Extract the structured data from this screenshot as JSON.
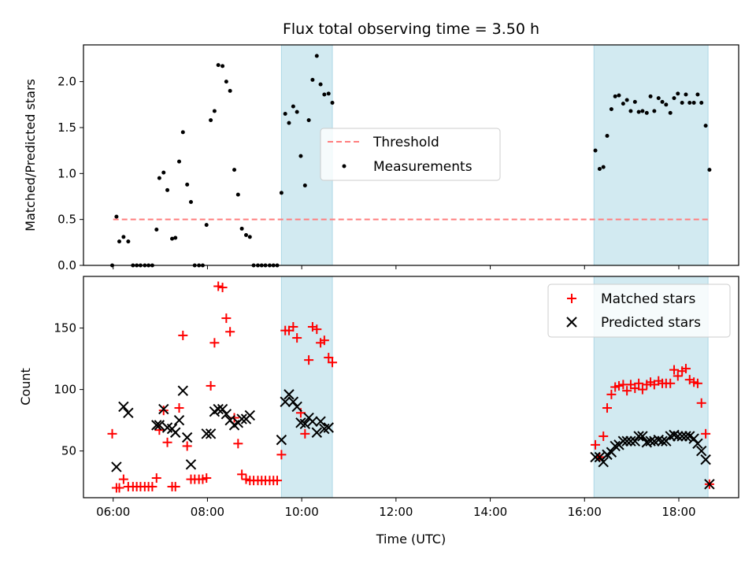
{
  "chart_data": {
    "title": "Flux total observing time = 3.50 h",
    "x_label": "Time (UTC)",
    "x_ticks": [
      "06:00",
      "08:00",
      "10:00",
      "12:00",
      "14:00",
      "16:00",
      "18:00"
    ],
    "x_range_hours": [
      5.37,
      19.27
    ],
    "shaded_intervals_hours": [
      [
        9.57,
        10.65
      ],
      [
        16.2,
        18.62
      ]
    ],
    "shade_color": "#add8e6",
    "panels": [
      {
        "type": "scatter",
        "y_label": "Matched/Predicted stars",
        "y_ticks": [
          0.0,
          0.5,
          1.0,
          1.5,
          2.0
        ],
        "y_tick_labels": [
          "0.0",
          "0.5",
          "1.0",
          "1.5",
          "2.0"
        ],
        "ylim": [
          0,
          2.4
        ],
        "legend_position": "center",
        "threshold": {
          "name": "Threshold",
          "value": 0.5,
          "x_range": [
            6.0,
            18.65
          ],
          "color": "#ff7f7f",
          "style": "dashed"
        },
        "series": [
          {
            "name": "Measurements",
            "color": "#000000",
            "marker": "dot",
            "x": [
              5.98,
              6.07,
              6.13,
              6.22,
              6.32,
              6.42,
              6.5,
              6.58,
              6.67,
              6.75,
              6.83,
              6.92,
              6.98,
              7.07,
              7.15,
              7.25,
              7.32,
              7.4,
              7.48,
              7.57,
              7.65,
              7.73,
              7.82,
              7.9,
              7.98,
              8.07,
              8.15,
              8.23,
              8.32,
              8.4,
              8.48,
              8.57,
              8.65,
              8.73,
              8.82,
              8.9,
              8.98,
              9.07,
              9.15,
              9.23,
              9.32,
              9.4,
              9.48,
              9.57,
              9.65,
              9.73,
              9.82,
              9.9,
              9.98,
              10.07,
              10.15,
              10.23,
              10.32,
              10.4,
              10.48,
              10.57,
              10.65,
              16.23,
              16.32,
              16.4,
              16.48,
              16.57,
              16.65,
              16.73,
              16.82,
              16.9,
              16.98,
              17.07,
              17.15,
              17.23,
              17.32,
              17.4,
              17.48,
              17.57,
              17.65,
              17.73,
              17.82,
              17.9,
              17.98,
              18.07,
              18.15,
              18.23,
              18.32,
              18.4,
              18.48,
              18.57,
              18.65
            ],
            "y": [
              0.0,
              0.53,
              0.26,
              0.31,
              0.26,
              0.0,
              0.0,
              0.0,
              0.0,
              0.0,
              0.0,
              0.39,
              0.95,
              1.01,
              0.82,
              0.29,
              0.3,
              1.13,
              1.45,
              0.88,
              0.69,
              0.0,
              0.0,
              0.0,
              0.44,
              1.58,
              1.68,
              2.18,
              2.17,
              2.0,
              1.9,
              1.04,
              0.77,
              0.4,
              0.33,
              0.31,
              0.0,
              0.0,
              0.0,
              0.0,
              0.0,
              0.0,
              0.0,
              0.79,
              1.65,
              1.55,
              1.73,
              1.67,
              1.19,
              0.87,
              1.58,
              2.02,
              2.28,
              1.97,
              1.86,
              1.87,
              1.77,
              1.25,
              1.05,
              1.07,
              1.41,
              1.7,
              1.84,
              1.85,
              1.76,
              1.8,
              1.68,
              1.78,
              1.67,
              1.68,
              1.66,
              1.84,
              1.68,
              1.82,
              1.78,
              1.75,
              1.66,
              1.82,
              1.87,
              1.77,
              1.86,
              1.77,
              1.77,
              1.86,
              1.77,
              1.52,
              1.04
            ]
          }
        ]
      },
      {
        "type": "scatter",
        "y_label": "Count",
        "y_ticks": [
          50,
          100,
          150
        ],
        "y_tick_labels": [
          "50",
          "100",
          "150"
        ],
        "ylim": [
          12,
          192
        ],
        "legend_position": "top-right",
        "series": [
          {
            "name": "Matched stars",
            "color": "#ff0000",
            "marker": "plus",
            "x": [
              5.98,
              6.07,
              6.13,
              6.22,
              6.32,
              6.42,
              6.5,
              6.58,
              6.67,
              6.75,
              6.83,
              6.92,
              6.98,
              7.07,
              7.15,
              7.25,
              7.32,
              7.4,
              7.48,
              7.57,
              7.65,
              7.73,
              7.82,
              7.9,
              7.98,
              8.07,
              8.15,
              8.23,
              8.32,
              8.4,
              8.48,
              8.57,
              8.65,
              8.73,
              8.82,
              8.9,
              8.98,
              9.07,
              9.15,
              9.23,
              9.32,
              9.4,
              9.48,
              9.57,
              9.65,
              9.73,
              9.82,
              9.9,
              9.98,
              10.07,
              10.15,
              10.23,
              10.32,
              10.4,
              10.48,
              10.57,
              10.65,
              16.23,
              16.32,
              16.4,
              16.48,
              16.57,
              16.65,
              16.73,
              16.82,
              16.9,
              16.98,
              17.07,
              17.15,
              17.23,
              17.32,
              17.4,
              17.48,
              17.57,
              17.65,
              17.73,
              17.82,
              17.9,
              17.98,
              18.07,
              18.15,
              18.23,
              18.32,
              18.4,
              18.48,
              18.57,
              18.65
            ],
            "y": [
              64,
              20,
              20,
              27,
              21,
              21,
              21,
              21,
              21,
              21,
              21,
              28,
              67,
              83,
              57,
              21,
              21,
              85,
              144,
              54,
              27,
              27,
              27,
              27,
              28,
              103,
              138,
              184,
              183,
              158,
              147,
              77,
              56,
              31,
              27,
              26,
              26,
              26,
              26,
              26,
              26,
              26,
              26,
              47,
              148,
              148,
              151,
              142,
              81,
              64,
              124,
              151,
              149,
              138,
              140,
              126,
              122,
              55,
              45,
              62,
              85,
              96,
              102,
              103,
              104,
              99,
              104,
              101,
              105,
              100,
              104,
              106,
              104,
              107,
              105,
              105,
              105,
              116,
              111,
              115,
              117,
              108,
              106,
              105,
              89,
              64,
              23
            ]
          },
          {
            "name": "Predicted stars",
            "color": "#000000",
            "marker": "x",
            "x": [
              6.07,
              6.22,
              6.32,
              6.92,
              6.98,
              7.07,
              7.15,
              7.25,
              7.32,
              7.4,
              7.48,
              7.57,
              7.65,
              7.98,
              8.07,
              8.15,
              8.23,
              8.32,
              8.4,
              8.48,
              8.57,
              8.65,
              8.73,
              8.82,
              8.9,
              9.57,
              9.65,
              9.73,
              9.82,
              9.9,
              9.98,
              10.07,
              10.15,
              10.23,
              10.32,
              10.4,
              10.48,
              10.57,
              16.23,
              16.32,
              16.4,
              16.48,
              16.57,
              16.65,
              16.73,
              16.82,
              16.9,
              16.98,
              17.07,
              17.15,
              17.23,
              17.32,
              17.4,
              17.48,
              17.57,
              17.65,
              17.73,
              17.82,
              17.9,
              17.98,
              18.07,
              18.15,
              18.23,
              18.32,
              18.4,
              18.48,
              18.57,
              18.65
            ],
            "y": [
              37,
              86,
              81,
              71,
              71,
              84,
              69,
              68,
              65,
              75,
              99,
              61,
              39,
              64,
              64,
              82,
              84,
              84,
              80,
              75,
              71,
              73,
              76,
              76,
              79,
              59,
              90,
              96,
              90,
              86,
              73,
              72,
              77,
              74,
              65,
              74,
              68,
              69,
              45,
              45,
              41,
              47,
              49,
              54,
              55,
              58,
              58,
              58,
              58,
              62,
              62,
              57,
              58,
              58,
              59,
              58,
              58,
              62,
              63,
              62,
              62,
              62,
              62,
              60,
              56,
              50,
              43,
              23
            ]
          }
        ]
      }
    ]
  }
}
